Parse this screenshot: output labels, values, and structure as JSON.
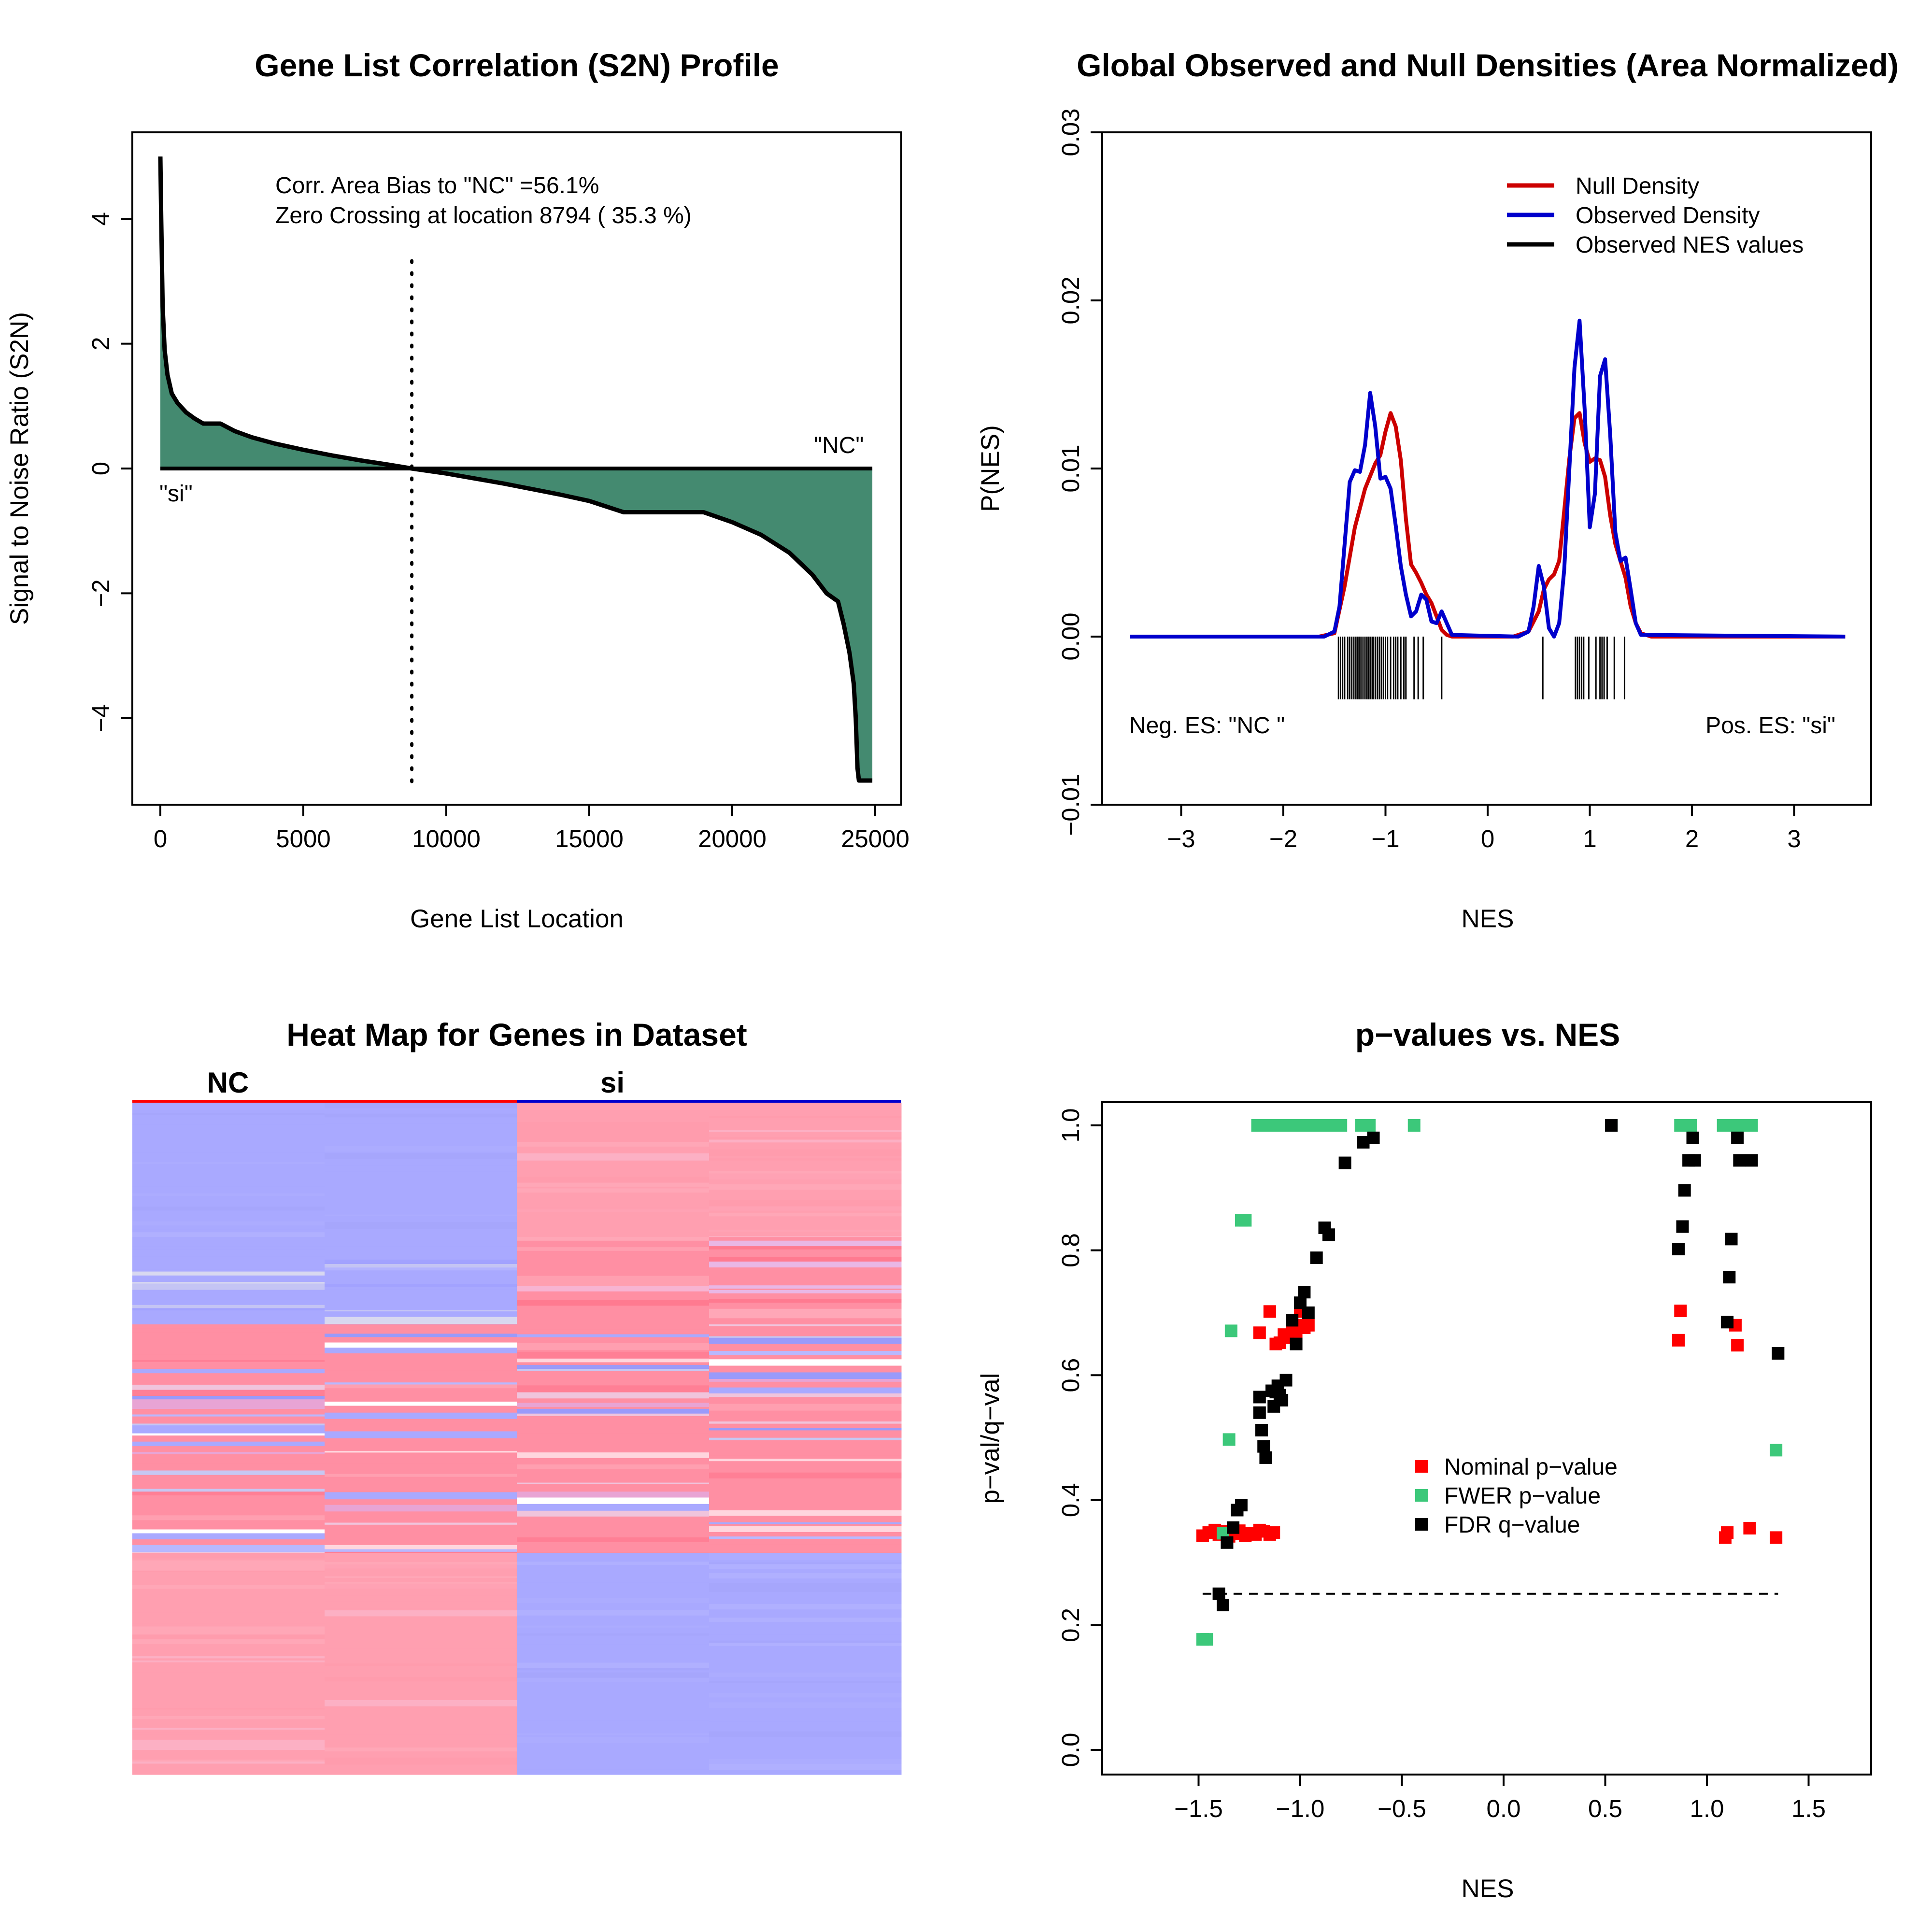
{
  "colors": {
    "area_fill": "#448a70",
    "null_density": "#cc0000",
    "observed_density": "#0000cc",
    "nes_ticks": "#000000",
    "nominal_p": "#ff0000",
    "fwer_p": "#3cc87a",
    "fdr_q": "#000000",
    "heat_red": "#ff9fb0",
    "heat_blue": "#a9a9ff",
    "class_nc_bar": "#ff0000",
    "class_si_bar": "#0000cc"
  },
  "chart_data": [
    {
      "type": "area",
      "title": "Gene List Correlation (S2N) Profile",
      "xlabel": "Gene List Location",
      "ylabel": "Signal to Noise Ratio (S2N)",
      "xlim": [
        0,
        25000
      ],
      "ylim": [
        -5,
        5
      ],
      "xticks": [
        0,
        5000,
        10000,
        15000,
        20000,
        25000
      ],
      "xtick_labels": [
        "0",
        "5000",
        "10000",
        "15000",
        "20000",
        "25000"
      ],
      "yticks": [
        -4,
        -2,
        0,
        2,
        4
      ],
      "ytick_labels": [
        "−4",
        "−2",
        "0",
        "2",
        "4"
      ],
      "annotations": {
        "bias": "Corr. Area Bias to \"NC\" =56.1%",
        "zero": "Zero Crossing at location  8794  ( 35.3  %)",
        "left_class": "\"si\"",
        "right_class": "\"NC\""
      },
      "zero_crossing": 8794,
      "x": [
        0,
        30,
        80,
        150,
        250,
        400,
        600,
        900,
        1200,
        1500,
        1800,
        2100,
        2600,
        3200,
        4000,
        5000,
        6000,
        7000,
        8000,
        8794,
        10000,
        11000,
        12000,
        13000,
        14000,
        15000,
        16200,
        17000,
        18000,
        19000,
        20000,
        21000,
        22000,
        22800,
        23300,
        23700,
        23900,
        24100,
        24250,
        24320,
        24380,
        24430,
        24900
      ],
      "values": [
        5.0,
        4.0,
        2.6,
        1.9,
        1.5,
        1.2,
        1.05,
        0.9,
        0.8,
        0.72,
        0.72,
        0.72,
        0.6,
        0.5,
        0.4,
        0.3,
        0.21,
        0.13,
        0.06,
        0.0,
        -0.08,
        -0.16,
        -0.24,
        -0.33,
        -0.42,
        -0.52,
        -0.7,
        -0.7,
        -0.7,
        -0.7,
        -0.86,
        -1.06,
        -1.35,
        -1.7,
        -2.0,
        -2.13,
        -2.5,
        -2.95,
        -3.45,
        -4.0,
        -4.8,
        -5.0,
        -5.0
      ]
    },
    {
      "type": "line",
      "title": "Global Observed and Null Densities (Area Normalized)",
      "xlabel": "NES",
      "ylabel": "P(NES)",
      "xlim": [
        -3.5,
        3.5
      ],
      "ylim": [
        -0.01,
        0.03
      ],
      "xticks": [
        -3,
        -2,
        -1,
        0,
        1,
        2,
        3
      ],
      "xtick_labels": [
        "−3",
        "−2",
        "−1",
        "0",
        "1",
        "2",
        "3"
      ],
      "yticks": [
        -0.01,
        0.0,
        0.01,
        0.02,
        0.03
      ],
      "ytick_labels": [
        "−0.01",
        "0.00",
        "0.01",
        "0.02",
        "0.03"
      ],
      "legend_position": "top-right",
      "legend": [
        "Null Density",
        "Observed Density",
        "Observed NES values"
      ],
      "annotations": {
        "neg": "Neg. ES: \"NC \"",
        "pos": "Pos. ES: \"si\""
      },
      "series": [
        {
          "name": "Null Density",
          "x": [
            -3.5,
            -1.65,
            -1.5,
            -1.4,
            -1.3,
            -1.2,
            -1.1,
            -1.05,
            -1.0,
            -0.95,
            -0.9,
            -0.85,
            -0.8,
            -0.75,
            -0.7,
            -0.65,
            -0.6,
            -0.55,
            -0.5,
            -0.45,
            -0.4,
            -0.35,
            0.25,
            0.4,
            0.5,
            0.55,
            0.6,
            0.65,
            0.7,
            0.75,
            0.8,
            0.85,
            0.9,
            0.95,
            1.0,
            1.05,
            1.1,
            1.15,
            1.2,
            1.25,
            1.3,
            1.35,
            1.4,
            1.45,
            1.5,
            1.6,
            3.5
          ],
          "values": [
            0,
            0,
            0.0002,
            0.003,
            0.0065,
            0.0088,
            0.0103,
            0.0108,
            0.0122,
            0.0133,
            0.0125,
            0.0105,
            0.007,
            0.0043,
            0.0038,
            0.0032,
            0.0025,
            0.002,
            0.0012,
            0.0004,
            0.0001,
            0,
            0,
            0.0003,
            0.0015,
            0.0028,
            0.0034,
            0.0037,
            0.0045,
            0.0075,
            0.0106,
            0.013,
            0.0133,
            0.0115,
            0.0104,
            0.0106,
            0.0105,
            0.0095,
            0.0072,
            0.0055,
            0.0045,
            0.0035,
            0.0018,
            0.0008,
            0.0002,
            0,
            0
          ]
        },
        {
          "name": "Observed Density",
          "x": [
            -3.5,
            -1.6,
            -1.5,
            -1.45,
            -1.4,
            -1.35,
            -1.3,
            -1.25,
            -1.2,
            -1.15,
            -1.1,
            -1.05,
            -1.0,
            -0.95,
            -0.9,
            -0.85,
            -0.8,
            -0.75,
            -0.7,
            -0.65,
            -0.6,
            -0.55,
            -0.5,
            -0.45,
            -0.4,
            -0.35,
            0.3,
            0.4,
            0.45,
            0.5,
            0.55,
            0.6,
            0.65,
            0.7,
            0.75,
            0.8,
            0.85,
            0.9,
            0.95,
            1.0,
            1.05,
            1.1,
            1.15,
            1.2,
            1.25,
            1.3,
            1.35,
            1.4,
            1.45,
            1.5,
            3.5
          ],
          "values": [
            0,
            0,
            0.0003,
            0.0018,
            0.0055,
            0.0092,
            0.0099,
            0.0098,
            0.0114,
            0.0145,
            0.0125,
            0.0094,
            0.0095,
            0.0088,
            0.0066,
            0.0042,
            0.0025,
            0.0012,
            0.0015,
            0.0025,
            0.0022,
            0.0009,
            0.0008,
            0.0015,
            0.0008,
            0.0001,
            0,
            0.0003,
            0.0018,
            0.0042,
            0.003,
            0.0005,
            0,
            0.0008,
            0.004,
            0.01,
            0.016,
            0.0188,
            0.0135,
            0.0065,
            0.0085,
            0.0155,
            0.0165,
            0.012,
            0.0062,
            0.0045,
            0.0047,
            0.0028,
            0.0008,
            0.0001,
            0
          ]
        }
      ],
      "nes_values": [
        -1.46,
        -1.44,
        -1.42,
        -1.4,
        -1.37,
        -1.35,
        -1.33,
        -1.31,
        -1.29,
        -1.27,
        -1.25,
        -1.23,
        -1.21,
        -1.19,
        -1.17,
        -1.15,
        -1.13,
        -1.12,
        -1.1,
        -1.08,
        -1.06,
        -1.04,
        -1.02,
        -1.0,
        -0.98,
        -0.95,
        -0.92,
        -0.9,
        -0.88,
        -0.85,
        -0.82,
        -0.8,
        -0.72,
        -0.68,
        -0.63,
        -0.45,
        0.54,
        0.86,
        0.88,
        0.9,
        0.92,
        0.94,
        0.99,
        1.06,
        1.1,
        1.12,
        1.14,
        1.17,
        1.24,
        1.34
      ]
    },
    {
      "type": "heatmap",
      "title": "Heat Map for Genes in Dataset",
      "class_labels": [
        "NC",
        "si"
      ],
      "columns": 4,
      "blocks": [
        {
          "from": 0.0,
          "to": 0.2,
          "pattern": [
            "blue",
            "blue",
            "red",
            "red"
          ]
        },
        {
          "from": 0.2,
          "to": 0.33,
          "pattern": [
            "blue_mixed",
            "blue_mixed",
            "red_mixed",
            "red_mixed"
          ]
        },
        {
          "from": 0.33,
          "to": 0.67,
          "pattern": [
            "mixed",
            "mixed",
            "mixed",
            "mixed"
          ]
        },
        {
          "from": 0.67,
          "to": 1.0,
          "pattern": [
            "red",
            "red",
            "blue",
            "blue"
          ]
        }
      ]
    },
    {
      "type": "scatter",
      "title": "p−values vs. NES",
      "xlabel": "NES",
      "ylabel": "p−val/q−val",
      "xlim": [
        -1.95,
        1.95
      ],
      "ylim": [
        -0.02,
        1.04
      ],
      "xticks": [
        -1.5,
        -1.0,
        -0.5,
        0.0,
        0.5,
        1.0,
        1.5
      ],
      "xtick_labels": [
        "−1.5",
        "−1.0",
        "−0.5",
        "0.0",
        "0.5",
        "1.0",
        "1.5"
      ],
      "yticks": [
        0.0,
        0.2,
        0.4,
        0.6,
        0.8,
        1.0
      ],
      "ytick_labels": [
        "0.0",
        "0.2",
        "0.4",
        "0.6",
        "0.8",
        "1.0"
      ],
      "threshold": 0.25,
      "threshold_range": [
        -1.48,
        1.35
      ],
      "legend_position": "center-right",
      "series": [
        {
          "name": "Nominal p−value",
          "x": [
            -1.48,
            -1.45,
            -1.42,
            -1.4,
            -1.38,
            -1.35,
            -1.32,
            -1.3,
            -1.27,
            -1.25,
            -1.22,
            -1.2,
            -1.18,
            -1.15,
            -1.13,
            -1.2,
            -1.15,
            -1.12,
            -1.1,
            -1.08,
            -1.06,
            -1.04,
            -1.02,
            -1.0,
            -1.0,
            -0.98,
            -0.96,
            0.86,
            0.87,
            1.09,
            1.1,
            1.14,
            1.15,
            1.21,
            1.34
          ],
          "y": [
            0.343,
            0.348,
            0.352,
            0.345,
            0.35,
            0.342,
            0.346,
            0.351,
            0.343,
            0.347,
            0.345,
            0.352,
            0.35,
            0.345,
            0.348,
            0.668,
            0.702,
            0.65,
            0.652,
            0.665,
            0.66,
            0.672,
            0.67,
            0.702,
            0.68,
            0.676,
            0.68,
            0.656,
            0.703,
            0.34,
            0.348,
            0.68,
            0.648,
            0.355,
            0.34
          ]
        },
        {
          "name": "FWER p−value",
          "x": [
            -1.21,
            -1.18,
            -1.15,
            -1.12,
            -1.09,
            -1.06,
            -1.03,
            -1.0,
            -0.97,
            -0.94,
            -0.91,
            -0.88,
            -0.85,
            -0.8,
            -0.7,
            -0.66,
            -0.44,
            -1.29,
            -1.27,
            -1.34,
            -1.35,
            -1.38,
            -1.48,
            -1.46,
            0.53,
            0.87,
            0.89,
            0.92,
            1.08,
            1.1,
            1.12,
            1.15,
            1.2,
            1.22,
            1.34
          ],
          "y": [
            1.0,
            1.0,
            1.0,
            1.0,
            1.0,
            1.0,
            1.0,
            1.0,
            1.0,
            1.0,
            1.0,
            1.0,
            1.0,
            1.0,
            1.0,
            1.0,
            1.0,
            0.848,
            0.848,
            0.671,
            0.497,
            0.347,
            0.177,
            0.177,
            1.0,
            1.0,
            1.0,
            1.0,
            1.0,
            1.0,
            1.0,
            1.0,
            1.0,
            1.0,
            0.48
          ]
        },
        {
          "name": "FDR q−value",
          "x": [
            -1.4,
            -1.38,
            -1.36,
            -1.33,
            -1.31,
            -1.29,
            -1.2,
            -1.19,
            -1.18,
            -1.17,
            -1.2,
            -1.14,
            -1.13,
            -1.12,
            -1.11,
            -1.1,
            -1.09,
            -1.07,
            -1.04,
            -1.02,
            -1.0,
            -0.98,
            -0.96,
            -0.92,
            -0.88,
            -0.86,
            -0.78,
            -0.69,
            -0.64,
            0.53,
            0.86,
            0.88,
            0.89,
            0.91,
            0.93,
            0.94,
            1.1,
            1.11,
            1.12,
            1.15,
            1.16,
            1.22,
            1.35
          ],
          "y": [
            0.25,
            0.232,
            0.332,
            0.356,
            0.384,
            0.392,
            0.54,
            0.512,
            0.486,
            0.468,
            0.565,
            0.575,
            0.55,
            0.573,
            0.583,
            0.568,
            0.56,
            0.592,
            0.688,
            0.65,
            0.716,
            0.733,
            0.7,
            0.788,
            0.836,
            0.825,
            0.94,
            0.973,
            0.98,
            1.0,
            0.802,
            0.838,
            0.896,
            0.944,
            0.98,
            0.944,
            0.685,
            0.757,
            0.818,
            0.98,
            0.944,
            0.944,
            0.635
          ]
        }
      ]
    }
  ]
}
